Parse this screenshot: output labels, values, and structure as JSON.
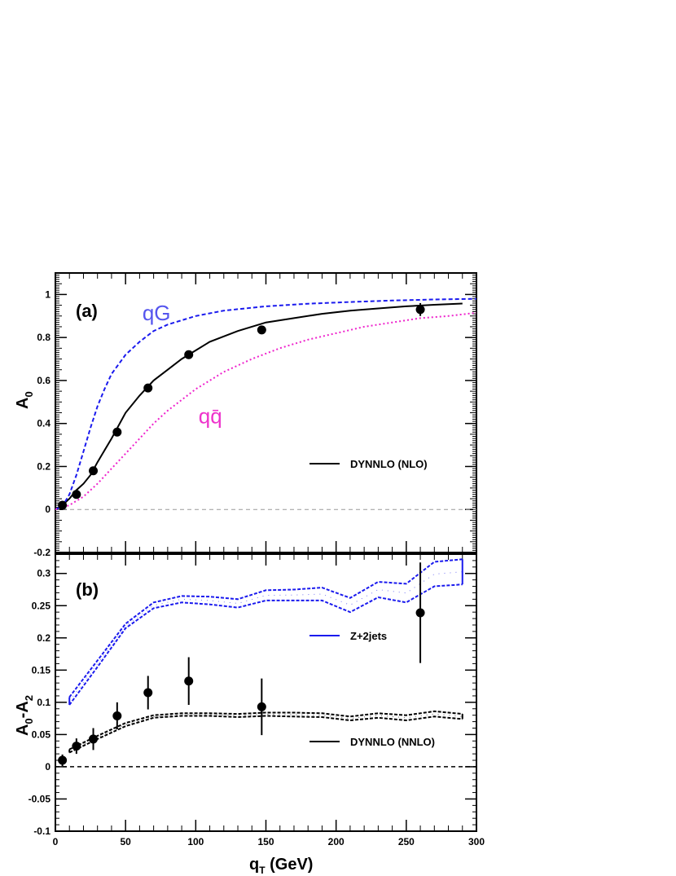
{
  "chart_data": [
    {
      "type": "line",
      "panel_label": "(a)",
      "xlabel": "q",
      "xlabel_sub": "T",
      "xlabel_unit": " (GeV)",
      "ylabel": "A",
      "ylabel_sub": "0",
      "xlim": [
        0,
        300
      ],
      "ylim": [
        -0.2,
        1.1
      ],
      "yticks": [
        -0.2,
        0,
        0.2,
        0.4,
        0.6,
        0.8,
        1
      ],
      "ytick_labels": [
        "-0.2",
        "0",
        "0.2",
        "0.4",
        "0.6",
        "0.8",
        "1"
      ],
      "zero_line": true,
      "channel_labels": [
        {
          "text": "qG",
          "color": "#5555ee",
          "x": 62,
          "y": 0.88
        },
        {
          "text": "qq̄",
          "color": "#ee33cc",
          "x": 102,
          "y": 0.4
        }
      ],
      "series": [
        {
          "name": "DYNNLO (NLO)",
          "style": "solid",
          "color": "#000000",
          "x": [
            5,
            10,
            15,
            20,
            25,
            30,
            40,
            50,
            60,
            70,
            80,
            90,
            100,
            110,
            130,
            150,
            170,
            190,
            210,
            230,
            250,
            270,
            290
          ],
          "y": [
            0.02,
            0.05,
            0.09,
            0.12,
            0.16,
            0.22,
            0.33,
            0.45,
            0.53,
            0.6,
            0.65,
            0.7,
            0.74,
            0.78,
            0.83,
            0.87,
            0.89,
            0.91,
            0.925,
            0.935,
            0.945,
            0.952,
            0.958
          ]
        },
        {
          "name": "qG",
          "style": "dashed",
          "color": "#1a1aee",
          "x": [
            0,
            5,
            10,
            15,
            20,
            25,
            30,
            35,
            40,
            50,
            60,
            70,
            80,
            100,
            120,
            150,
            180,
            210,
            240,
            270,
            300
          ],
          "y": [
            0.0,
            0.015,
            0.07,
            0.16,
            0.27,
            0.38,
            0.48,
            0.56,
            0.63,
            0.72,
            0.78,
            0.83,
            0.86,
            0.9,
            0.925,
            0.945,
            0.957,
            0.965,
            0.972,
            0.977,
            0.98
          ]
        },
        {
          "name": "qq̄",
          "style": "dotted",
          "color": "#ee22cc",
          "x": [
            0,
            10,
            20,
            30,
            40,
            50,
            60,
            70,
            80,
            100,
            120,
            140,
            160,
            180,
            200,
            220,
            240,
            260,
            280,
            300
          ],
          "y": [
            0.0,
            0.02,
            0.06,
            0.12,
            0.19,
            0.26,
            0.33,
            0.4,
            0.46,
            0.56,
            0.64,
            0.7,
            0.75,
            0.79,
            0.82,
            0.85,
            0.87,
            0.89,
            0.9,
            0.915
          ]
        }
      ],
      "points": {
        "x": [
          5,
          15,
          27,
          44,
          66,
          95,
          147,
          260
        ],
        "y": [
          0.02,
          0.07,
          0.18,
          0.36,
          0.565,
          0.72,
          0.835,
          0.93
        ],
        "yerr": [
          0.008,
          0.008,
          0.01,
          0.01,
          0.01,
          0.012,
          0.018,
          0.03
        ]
      },
      "legend": {
        "text": "DYNNLO (NLO)",
        "placement": "lower-right"
      }
    },
    {
      "type": "line",
      "panel_label": "(b)",
      "xlabel": "q",
      "xlabel_sub": "T",
      "xlabel_unit": " (GeV)",
      "ylabel": "A",
      "ylabel_sub": "0",
      "ylabel_mid": "-A",
      "ylabel_sub2": "2",
      "xlim": [
        0,
        300
      ],
      "ylim": [
        -0.1,
        0.33
      ],
      "xticks": [
        0,
        50,
        100,
        150,
        200,
        250,
        300
      ],
      "xtick_labels": [
        "0",
        "50",
        "100",
        "150",
        "200",
        "250",
        "300"
      ],
      "yticks": [
        -0.1,
        -0.05,
        0,
        0.05,
        0.1,
        0.15,
        0.2,
        0.25,
        0.3
      ],
      "ytick_labels": [
        "-0.1",
        "-0.05",
        "0",
        "0.05",
        "0.1",
        "0.15",
        "0.2",
        "0.25",
        "0.3"
      ],
      "zero_line": true,
      "bands": [
        {
          "name": "Z+2jets",
          "color": "#1a1aee",
          "x": [
            10,
            30,
            50,
            70,
            90,
            110,
            130,
            150,
            170,
            190,
            210,
            230,
            250,
            270,
            290
          ],
          "upper": [
            0.108,
            0.165,
            0.222,
            0.255,
            0.265,
            0.264,
            0.26,
            0.274,
            0.275,
            0.278,
            0.262,
            0.287,
            0.284,
            0.318,
            0.322
          ],
          "lower": [
            0.096,
            0.155,
            0.215,
            0.246,
            0.255,
            0.252,
            0.247,
            0.258,
            0.258,
            0.258,
            0.24,
            0.263,
            0.255,
            0.28,
            0.283
          ]
        },
        {
          "name": "DYNNLO (NNLO)",
          "color": "#000000",
          "x": [
            10,
            30,
            50,
            70,
            90,
            110,
            130,
            150,
            170,
            190,
            210,
            230,
            250,
            270,
            290
          ],
          "upper": [
            0.027,
            0.048,
            0.068,
            0.08,
            0.083,
            0.083,
            0.082,
            0.084,
            0.084,
            0.083,
            0.078,
            0.083,
            0.08,
            0.086,
            0.082
          ],
          "lower": [
            0.022,
            0.043,
            0.063,
            0.076,
            0.079,
            0.079,
            0.077,
            0.079,
            0.078,
            0.077,
            0.072,
            0.076,
            0.072,
            0.078,
            0.074
          ]
        }
      ],
      "points": {
        "x": [
          5,
          15,
          27,
          44,
          66,
          95,
          147,
          260
        ],
        "y": [
          0.01,
          0.032,
          0.043,
          0.079,
          0.115,
          0.133,
          0.093,
          0.239
        ],
        "yerr": [
          0.009,
          0.012,
          0.017,
          0.021,
          0.026,
          0.037,
          0.044,
          0.078
        ]
      },
      "legend": [
        {
          "text": "Z+2jets",
          "color": "#1a1aee",
          "placement": "right"
        },
        {
          "text": "DYNNLO (NNLO)",
          "color": "#000000",
          "placement": "lower-right"
        }
      ]
    }
  ]
}
